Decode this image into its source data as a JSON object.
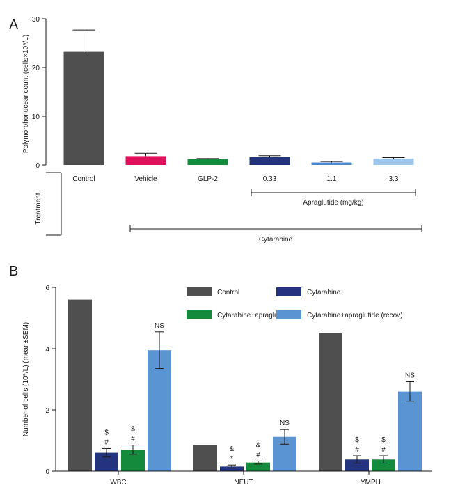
{
  "colors": {
    "dark_gray": "#4f4f4f",
    "magenta": "#e0105a",
    "green": "#148a3c",
    "navy": "#23337e",
    "blue": "#4f8ad0",
    "light_blue": "#9cc6ec"
  },
  "panel_a": {
    "letter": "A",
    "ylabel": "Polymorphonucear count (cells×10⁹/L)",
    "treatment_label": "Treatment",
    "apraglutide_label": "Apraglutide (mg/kg)",
    "cytarabine_label": "Cytarabine"
  },
  "panel_b": {
    "letter": "B"
  },
  "chart_data": [
    {
      "type": "bar",
      "ylabel": "Polymorphonucear count (cells×10⁹/L)",
      "ylim": [
        0,
        30
      ],
      "yticks": [
        0,
        10,
        20,
        30
      ],
      "categories": [
        "Control",
        "Vehicle",
        "GLP-2",
        "0.33",
        "1.1",
        "3.3"
      ],
      "values": [
        23.2,
        1.8,
        1.2,
        1.6,
        0.5,
        1.3
      ],
      "errors": [
        4.5,
        0.6,
        0.1,
        0.3,
        0.2,
        0.2
      ],
      "bar_colors": [
        "#4f4f4f",
        "#e0105a",
        "#148a3c",
        "#23337e",
        "#4f8ad0",
        "#9cc6ec"
      ],
      "grid": false
    },
    {
      "type": "bar",
      "ylabel": "Number of cells (10⁹/L) (mean±SEM)",
      "ylim": [
        0,
        6
      ],
      "yticks": [
        0,
        2,
        4,
        6
      ],
      "categories": [
        "WBC",
        "NEUT",
        "LYMPH"
      ],
      "series": [
        {
          "name": "Control",
          "color": "#4f4f4f",
          "values": [
            5.6,
            0.85,
            4.5
          ],
          "errors": [
            null,
            null,
            null
          ]
        },
        {
          "name": "Cytarabine",
          "color": "#23337e",
          "values": [
            0.6,
            0.15,
            0.38
          ],
          "errors": [
            0.14,
            0.05,
            0.12
          ]
        },
        {
          "name": "Cytarabine+apraglutide",
          "color": "#148a3c",
          "values": [
            0.7,
            0.28,
            0.38
          ],
          "errors": [
            0.15,
            0.05,
            0.12
          ]
        },
        {
          "name": "Cytarabine+apraglutide (recov)",
          "color": "#5b94d2",
          "values": [
            3.95,
            1.12,
            2.6
          ],
          "errors": [
            0.6,
            0.24,
            0.32
          ]
        }
      ],
      "annotations": [
        {
          "category": "WBC",
          "series": "Cytarabine",
          "lines": [
            "$",
            "#"
          ]
        },
        {
          "category": "WBC",
          "series": "Cytarabine+apraglutide",
          "lines": [
            "$",
            "#"
          ]
        },
        {
          "category": "WBC",
          "series": "Cytarabine+apraglutide (recov)",
          "lines": [
            "NS"
          ]
        },
        {
          "category": "NEUT",
          "series": "Cytarabine",
          "lines": [
            "&",
            "*"
          ]
        },
        {
          "category": "NEUT",
          "series": "Cytarabine+apraglutide",
          "lines": [
            "&",
            "#"
          ]
        },
        {
          "category": "NEUT",
          "series": "Cytarabine+apraglutide (recov)",
          "lines": [
            "NS"
          ]
        },
        {
          "category": "LYMPH",
          "series": "Cytarabine",
          "lines": [
            "$",
            "#"
          ]
        },
        {
          "category": "LYMPH",
          "series": "Cytarabine+apraglutide",
          "lines": [
            "$",
            "#"
          ]
        },
        {
          "category": "LYMPH",
          "series": "Cytarabine+apraglutide (recov)",
          "lines": [
            "NS"
          ]
        }
      ],
      "legend_position": "top",
      "grid": false
    }
  ]
}
